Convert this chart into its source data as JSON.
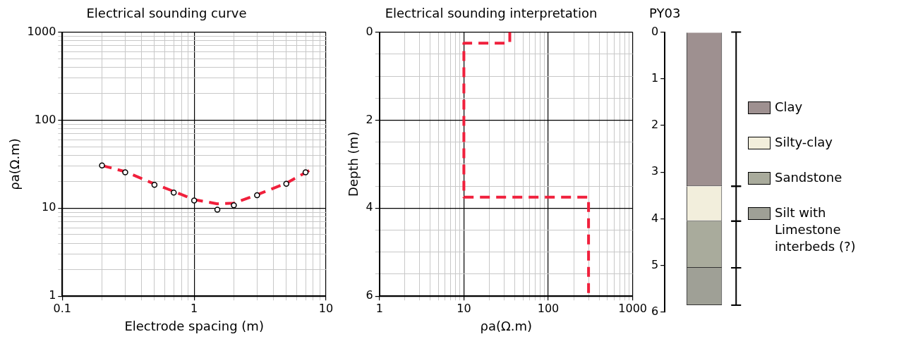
{
  "chart_data": [
    {
      "type": "scatter",
      "title": "Electrical sounding curve",
      "xlabel": "Electrode spacing (m)",
      "ylabel": "ρa(Ω.m)",
      "log": "xy",
      "grid": true,
      "xlim": [
        0.1,
        10
      ],
      "xticks": [
        0.1,
        {
          "value": 0.2,
          "label": null
        },
        {
          "value": 0.3,
          "label": null
        },
        {
          "value": 0.4,
          "label": null
        },
        {
          "value": 0.5,
          "label": null
        },
        {
          "value": 0.6,
          "label": null
        },
        {
          "value": 0.7,
          "label": null
        },
        {
          "value": 0.8,
          "label": null
        },
        {
          "value": 0.9,
          "label": null
        },
        1,
        {
          "value": 2,
          "label": null
        },
        {
          "value": 3,
          "label": null
        },
        {
          "value": 4,
          "label": null
        },
        {
          "value": 5,
          "label": null
        },
        {
          "value": 6,
          "label": null
        },
        {
          "value": 7,
          "label": null
        },
        {
          "value": 8,
          "label": null
        },
        {
          "value": 9,
          "label": null
        },
        10
      ],
      "ylim": [
        1,
        1000
      ],
      "yticks": [
        1,
        {
          "value": 2,
          "label": null
        },
        {
          "value": 3,
          "label": null
        },
        {
          "value": 4,
          "label": null
        },
        {
          "value": 5,
          "label": null
        },
        {
          "value": 6,
          "label": null
        },
        {
          "value": 7,
          "label": null
        },
        {
          "value": 8,
          "label": null
        },
        {
          "value": 9,
          "label": null
        },
        10,
        {
          "value": 20,
          "label": null
        },
        {
          "value": 30,
          "label": null
        },
        {
          "value": 40,
          "label": null
        },
        {
          "value": 50,
          "label": null
        },
        {
          "value": 60,
          "label": null
        },
        {
          "value": 70,
          "label": null
        },
        {
          "value": 80,
          "label": null
        },
        {
          "value": 90,
          "label": null
        },
        100,
        {
          "value": 200,
          "label": null
        },
        {
          "value": 300,
          "label": null
        },
        {
          "value": 400,
          "label": null
        },
        {
          "value": 500,
          "label": null
        },
        {
          "value": 600,
          "label": null
        },
        {
          "value": 700,
          "label": null
        },
        {
          "value": 800,
          "label": null
        },
        {
          "value": 900,
          "label": null
        },
        1000
      ],
      "series": [
        {
          "type": "scatter",
          "marker": "circle",
          "color": "#000000",
          "x": [
            0.2,
            0.3,
            0.5,
            0.7,
            1,
            1.5,
            2,
            3,
            5,
            7
          ],
          "values": [
            30.5,
            25.5,
            18.4,
            15,
            12.2,
            9.6,
            10.8,
            14,
            18.9,
            25.5
          ]
        },
        {
          "type": "line",
          "line_style": "dashed",
          "color": "#f0203c",
          "x": [
            0.2,
            0.3,
            0.5,
            0.7,
            1,
            1.5,
            2,
            3,
            5,
            7.6
          ],
          "values": [
            30.5,
            26,
            18.8,
            15.5,
            12.5,
            11.2,
            11.4,
            14.2,
            19.2,
            27.2
          ]
        }
      ]
    },
    {
      "type": "line",
      "title": "Electrical sounding interpretation",
      "xlabel": "ρa(Ω.m)",
      "ylabel": "Depth (m)",
      "log": "x",
      "grid": true,
      "xlim": [
        1,
        1000
      ],
      "xticks": [
        1,
        {
          "value": 2,
          "label": null
        },
        {
          "value": 3,
          "label": null
        },
        {
          "value": 4,
          "label": null
        },
        {
          "value": 5,
          "label": null
        },
        {
          "value": 6,
          "label": null
        },
        {
          "value": 7,
          "label": null
        },
        {
          "value": 8,
          "label": null
        },
        {
          "value": 9,
          "label": null
        },
        10,
        {
          "value": 20,
          "label": null
        },
        {
          "value": 30,
          "label": null
        },
        {
          "value": 40,
          "label": null
        },
        {
          "value": 50,
          "label": null
        },
        {
          "value": 60,
          "label": null
        },
        {
          "value": 70,
          "label": null
        },
        {
          "value": 80,
          "label": null
        },
        {
          "value": 90,
          "label": null
        },
        100,
        {
          "value": 200,
          "label": null
        },
        {
          "value": 300,
          "label": null
        },
        {
          "value": 400,
          "label": null
        },
        {
          "value": 500,
          "label": null
        },
        {
          "value": 600,
          "label": null
        },
        {
          "value": 700,
          "label": null
        },
        {
          "value": 800,
          "label": null
        },
        {
          "value": 900,
          "label": null
        },
        1000
      ],
      "ylim": [
        6,
        0
      ],
      "yticks": [
        0,
        {
          "value": 0.5,
          "label": null
        },
        {
          "value": 1,
          "label": null
        },
        {
          "value": 1.5,
          "label": null
        },
        2,
        {
          "value": 2.5,
          "label": null
        },
        {
          "value": 3,
          "label": null
        },
        {
          "value": 3.5,
          "label": null
        },
        4,
        {
          "value": 4.5,
          "label": null
        },
        {
          "value": 5,
          "label": null
        },
        {
          "value": 5.5,
          "label": null
        },
        6
      ],
      "series": [
        {
          "type": "line",
          "line_style": "dashed",
          "color": "#f0203c",
          "x": [
            35,
            35,
            10,
            10,
            300,
            300
          ],
          "values": [
            0,
            0.25,
            0.25,
            3.75,
            3.75,
            6
          ]
        }
      ]
    },
    {
      "type": "bar",
      "title": "PY03",
      "stacked": true,
      "legend": "right",
      "tick_labels": "y",
      "grid": false,
      "categories": [
        null
      ],
      "ylim": [
        6,
        0
      ],
      "yticks": [
        0,
        1,
        2,
        3,
        4,
        5,
        6
      ],
      "series": [
        {
          "name": "Clay",
          "color": "#9e9090",
          "values": [
            3.3
          ]
        },
        {
          "name": "Silty-clay",
          "color": "#f2eedc",
          "values": [
            0.75
          ]
        },
        {
          "name": "Sandstone",
          "color": "#a9ab9c",
          "values": [
            1
          ]
        },
        {
          "name": "Silt with Limestone interbeds (?)",
          "color": "#9fa096",
          "values": [
            0.8
          ]
        }
      ]
    }
  ]
}
